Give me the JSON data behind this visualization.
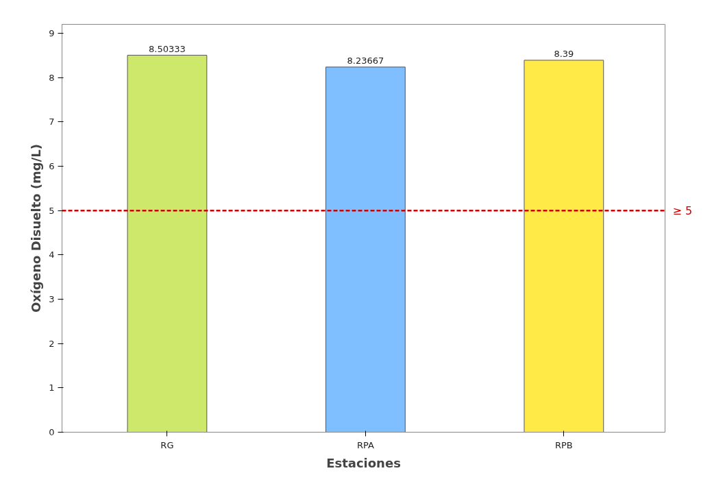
{
  "chart_data": {
    "type": "bar",
    "xlabel": "Estaciones",
    "ylabel": "Oxígeno Disuelto (mg/L)",
    "categories": [
      "RG",
      "RPA",
      "RPB"
    ],
    "values": [
      8.50333,
      8.23667,
      8.39
    ],
    "colors": [
      "#cde86b",
      "#80bfff",
      "#ffea47"
    ],
    "ylim": [
      0,
      9.2
    ],
    "yticks": [
      0,
      1,
      2,
      3,
      4,
      5,
      6,
      7,
      8,
      9
    ],
    "data_labels": true,
    "grid": false,
    "ref_lines": [
      {
        "axis": "y",
        "value": 5,
        "label": "≥ 5",
        "color": "#cc0000",
        "line_style": "dashed"
      }
    ]
  }
}
